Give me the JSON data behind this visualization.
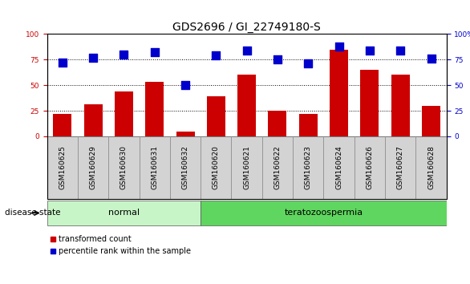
{
  "title": "GDS2696 / GI_22749180-S",
  "samples": [
    "GSM160625",
    "GSM160629",
    "GSM160630",
    "GSM160631",
    "GSM160632",
    "GSM160620",
    "GSM160621",
    "GSM160622",
    "GSM160623",
    "GSM160624",
    "GSM160626",
    "GSM160627",
    "GSM160628"
  ],
  "transformed_count": [
    22,
    31,
    44,
    53,
    5,
    39,
    60,
    25,
    22,
    85,
    65,
    60,
    30
  ],
  "percentile_rank": [
    72,
    77,
    80,
    82,
    50,
    79,
    84,
    75,
    71,
    88,
    84,
    84,
    76
  ],
  "groups": [
    {
      "label": "normal",
      "start": 0,
      "end": 4,
      "color": "#c8f5c8"
    },
    {
      "label": "teratozoospermia",
      "start": 5,
      "end": 12,
      "color": "#5fd65f"
    }
  ],
  "group_label": "disease state",
  "bar_color": "#cc0000",
  "dot_color": "#0000cc",
  "ylim": [
    0,
    100
  ],
  "yticks": [
    0,
    25,
    50,
    75,
    100
  ],
  "grid_lines": [
    25,
    50,
    75
  ],
  "legend_items": [
    "transformed count",
    "percentile rank within the sample"
  ],
  "bar_width": 0.6,
  "dot_size": 55,
  "tick_label_fontsize": 6.5,
  "title_fontsize": 10,
  "left_yaxis_color": "#cc0000",
  "right_yaxis_color": "#0000cc",
  "xtick_bg_color": "#d3d3d3",
  "xtick_border_color": "#888888"
}
